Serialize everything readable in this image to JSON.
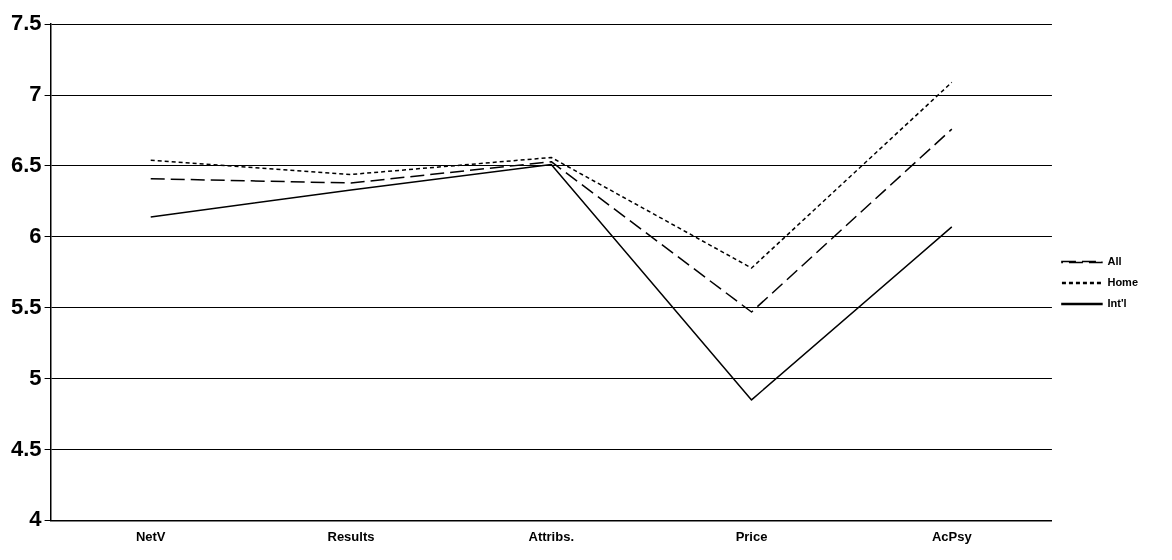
{
  "chart_data": {
    "type": "line",
    "categories": [
      "NetV",
      "Results",
      "Attribs.",
      "Price",
      "AcPsy"
    ],
    "series": [
      {
        "name": "All",
        "color": "#000000",
        "line_style": "dashed",
        "values": [
          6.41,
          6.38,
          6.53,
          5.47,
          6.76
        ]
      },
      {
        "name": "Home",
        "color": "#000000",
        "line_style": "dotted",
        "values": [
          6.54,
          6.44,
          6.56,
          5.78,
          7.09
        ]
      },
      {
        "name": "Int'l",
        "color": "#000000",
        "line_style": "solid",
        "values": [
          6.14,
          6.33,
          6.51,
          4.85,
          6.07
        ]
      }
    ],
    "ylim": [
      4,
      7.5
    ],
    "yticks": [
      4,
      4.5,
      5,
      5.5,
      6,
      6.5,
      7,
      7.5
    ],
    "grid": "y",
    "legend": "right"
  }
}
